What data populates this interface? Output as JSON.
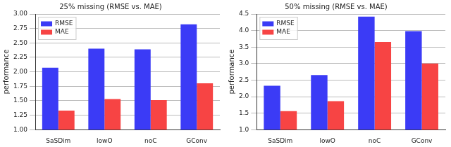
{
  "chart_data": [
    {
      "type": "bar",
      "title": "25% missing (RMSE vs. MAE)",
      "y_label": "performance",
      "categories": [
        "SaSDim",
        "lowO",
        "noC",
        "GConv"
      ],
      "series": [
        {
          "name": "RMSE",
          "color": "#3b3bf6",
          "values": [
            2.07,
            2.4,
            2.39,
            2.82
          ]
        },
        {
          "name": "MAE",
          "color": "#f74444",
          "values": [
            1.33,
            1.53,
            1.51,
            1.8
          ]
        }
      ],
      "ylim": [
        1.0,
        3.0
      ],
      "yticks": [
        {
          "value": 1.0,
          "label": "1.00"
        },
        1.25,
        {
          "value": 1.5,
          "label": "1.50"
        },
        1.75,
        {
          "value": 2.0,
          "label": "2.00"
        },
        2.25,
        {
          "value": 2.5,
          "label": "2.50"
        },
        2.75,
        {
          "value": 3.0,
          "label": "3.00"
        }
      ],
      "grid": true,
      "legend": "upper left"
    },
    {
      "type": "bar",
      "title": "50% missing (RMSE vs. MAE)",
      "y_label": "performance",
      "categories": [
        "SaSDim",
        "lowO",
        "noC",
        "GConv"
      ],
      "series": [
        {
          "name": "RMSE",
          "color": "#3b3bf6",
          "values": [
            2.33,
            2.65,
            4.42,
            3.98
          ]
        },
        {
          "name": "MAE",
          "color": "#f74444",
          "values": [
            1.56,
            1.86,
            3.65,
            3.0
          ]
        }
      ],
      "ylim": [
        1.0,
        4.5
      ],
      "yticks": [
        {
          "value": 1.0,
          "label": "1.0"
        },
        1.5,
        {
          "value": 2.0,
          "label": "2.0"
        },
        2.5,
        {
          "value": 3.0,
          "label": "3.0"
        },
        3.5,
        {
          "value": 4.0,
          "label": "4.0"
        },
        4.5
      ],
      "grid": true,
      "legend": "upper left"
    }
  ]
}
